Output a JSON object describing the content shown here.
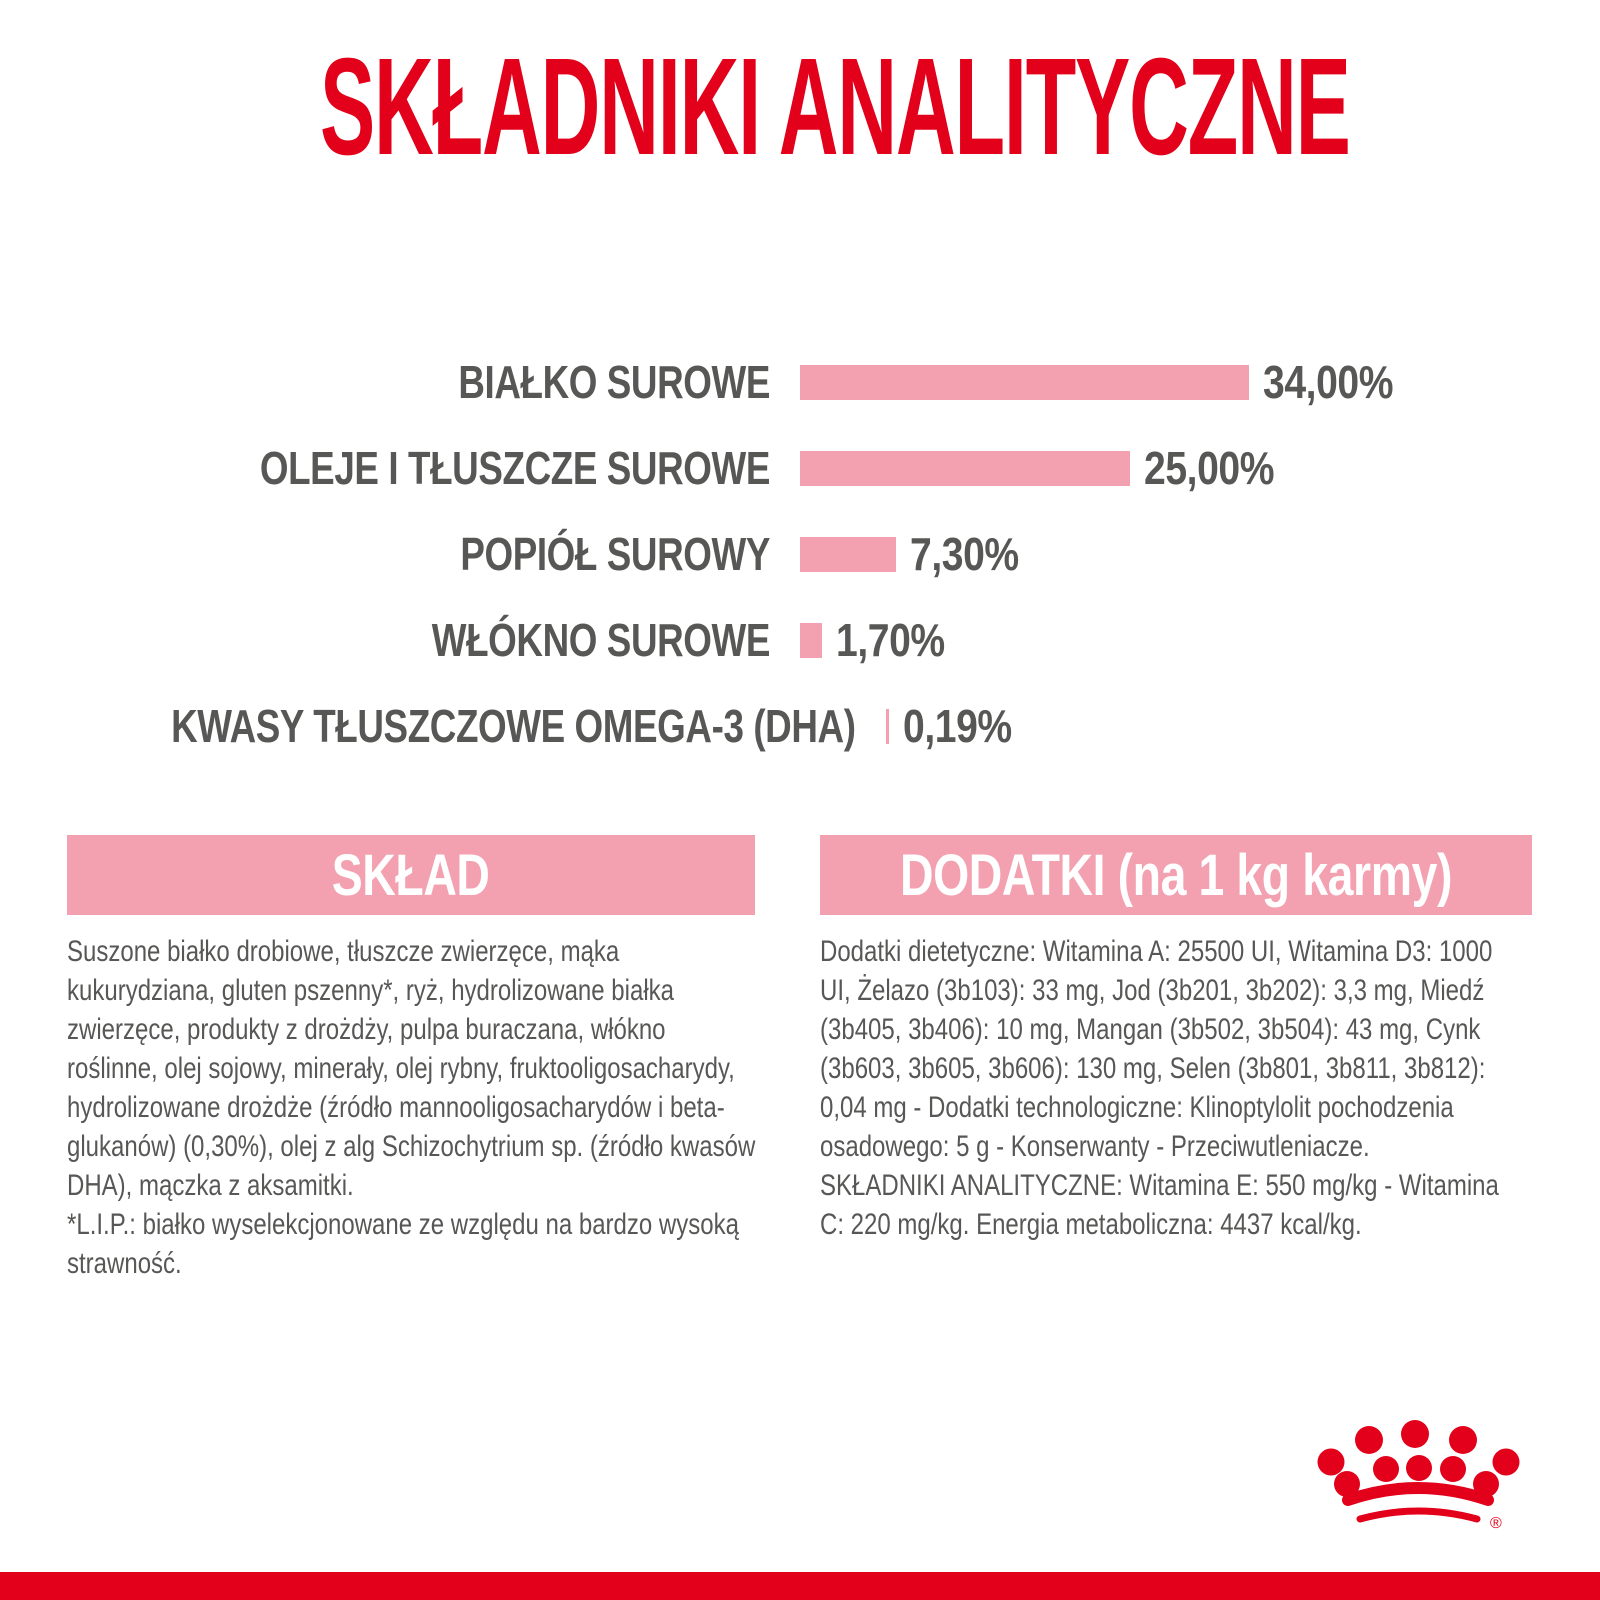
{
  "title": "SKŁADNIKI ANALITYCZNE",
  "chart_data": {
    "type": "bar",
    "orientation": "horizontal",
    "title": "SKŁADNIKI ANALITYCZNE",
    "unit": "%",
    "xlim": [
      0,
      34
    ],
    "bar_color": "#F3A1B0",
    "grid": false,
    "legend": false,
    "rows": [
      {
        "label": "BIAŁKO SUROWE",
        "value": 34.0,
        "value_label": "34,00%"
      },
      {
        "label": "OLEJE I TŁUSZCZE SUROWE",
        "value": 25.0,
        "value_label": "25,00%"
      },
      {
        "label": "POPIÓŁ SUROWY",
        "value": 7.3,
        "value_label": "7,30%"
      },
      {
        "label": "WŁÓKNO SUROWE",
        "value": 1.7,
        "value_label": "1,70%"
      },
      {
        "label": "KWASY TŁUSZCZOWE OMEGA-3 (DHA)",
        "value": 0.19,
        "value_label": "0,19%"
      }
    ]
  },
  "composition": {
    "header": "SKŁAD",
    "paragraphs": [
      "Suszone białko drobiowe, tłuszcze zwierzęce, mąka kukurydziana, gluten pszenny*, ryż, hydrolizowane białka zwierzęce, produkty z drożdży, pulpa buraczana, włókno roślinne, olej sojowy, minerały, olej rybny, fruktooligosacharydy, hydrolizowane drożdże (źródło mannooligosacharydów i beta-glukanów) (0,30%), olej z alg Schizochytrium sp. (źródło kwasów DHA), mączka z aksamitki.",
      "*L.I.P.: białko wyselekcjonowane ze względu na bardzo wysoką strawność."
    ]
  },
  "additives": {
    "header": "DODATKI (na 1 kg karmy)",
    "paragraphs": [
      "Dodatki dietetyczne: Witamina A: 25500 UI, Witamina D3: 1000 UI, Żelazo (3b103): 33 mg, Jod (3b201, 3b202): 3,3 mg, Miedź (3b405, 3b406): 10 mg, Mangan (3b502, 3b504): 43 mg, Cynk (3b603, 3b605, 3b606): 130 mg, Selen (3b801, 3b811, 3b812): 0,04 mg - Dodatki technologiczne: Klinoptylolit pochodzenia osadowego: 5 g - Konserwanty - Przeciwutleniacze.",
      "SKŁADNIKI ANALITYCZNE: Witamina E: 550 mg/kg - Witamina C: 220 mg/kg. Energia metaboliczna: 4437 kcal/kg."
    ]
  },
  "logo": {
    "registered_mark": "®"
  },
  "colors": {
    "brand_red": "#E2001A",
    "pink": "#F3A1B0",
    "text_gray": "#575756",
    "background": "#FFFFFF"
  }
}
